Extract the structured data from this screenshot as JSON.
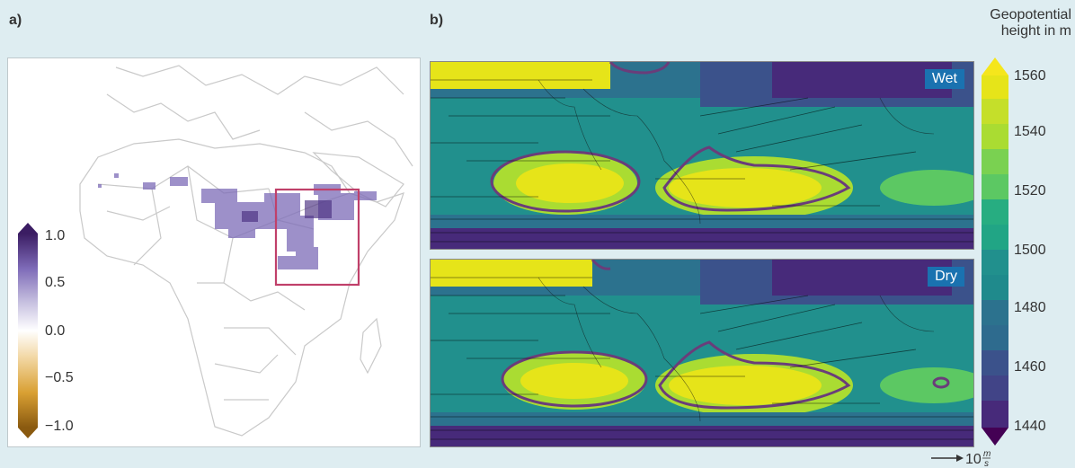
{
  "panels": {
    "a": {
      "label": "a)"
    },
    "b": {
      "label": "b)"
    }
  },
  "map_a": {
    "region": "Africa",
    "box_color": "#c0406a",
    "colorbar": {
      "ticks": [
        "1.0",
        "0.5",
        "0.0",
        "−0.5",
        "−1.0"
      ],
      "range": [
        -1.0,
        1.0
      ],
      "colors": [
        "#8a5a10",
        "#d9a033",
        "#f2d7a3",
        "#ffffff",
        "#c9c3e1",
        "#7e6bb8",
        "#3b1d63"
      ]
    }
  },
  "map_b": {
    "colorbar": {
      "title_line1": "Geopotential",
      "title_line2": "height in m",
      "ticks": [
        "1560",
        "1540",
        "1520",
        "1500",
        "1480",
        "1460",
        "1440"
      ],
      "range": [
        1440,
        1560
      ],
      "colors": [
        "#472a7a",
        "#3b528b",
        "#2c728e",
        "#21908d",
        "#27ad81",
        "#5cc863",
        "#aadc32",
        "#e6e419"
      ]
    },
    "panels": [
      {
        "badge": "Wet"
      },
      {
        "badge": "Dry"
      }
    ],
    "scale_arrow": {
      "value": "10",
      "unit_num": "m",
      "unit_den": "s"
    }
  }
}
